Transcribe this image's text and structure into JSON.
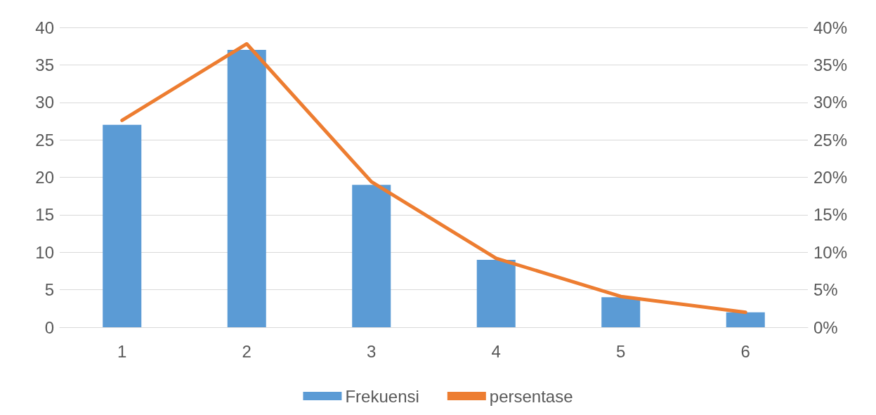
{
  "chart_data": {
    "type": "bar",
    "categories": [
      "1",
      "2",
      "3",
      "4",
      "5",
      "6"
    ],
    "series": [
      {
        "name": "Frekuensi",
        "color": "#5b9bd5",
        "values": [
          27,
          37,
          19,
          9,
          4,
          2
        ]
      },
      {
        "name": "persentase",
        "type": "line",
        "axis": "y2",
        "color": "#ed7d31",
        "values": [
          27.6,
          37.8,
          19.4,
          9.2,
          4.1,
          2.0
        ]
      }
    ],
    "ylim": [
      0,
      40
    ],
    "yticks": [
      0,
      5,
      10,
      15,
      20,
      25,
      30,
      35,
      40
    ],
    "y2lim": [
      0,
      40
    ],
    "y2ticks": [
      {
        "value": 0,
        "label": "0%"
      },
      {
        "value": 5,
        "label": "5%"
      },
      {
        "value": 10,
        "label": "10%"
      },
      {
        "value": 15,
        "label": "15%"
      },
      {
        "value": 20,
        "label": "20%"
      },
      {
        "value": 25,
        "label": "25%"
      },
      {
        "value": 30,
        "label": "30%"
      },
      {
        "value": 35,
        "label": "35%"
      },
      {
        "value": 40,
        "label": "40%"
      }
    ],
    "grid": "y",
    "legend": "bottom",
    "marker": "none",
    "line_style": "solid"
  }
}
